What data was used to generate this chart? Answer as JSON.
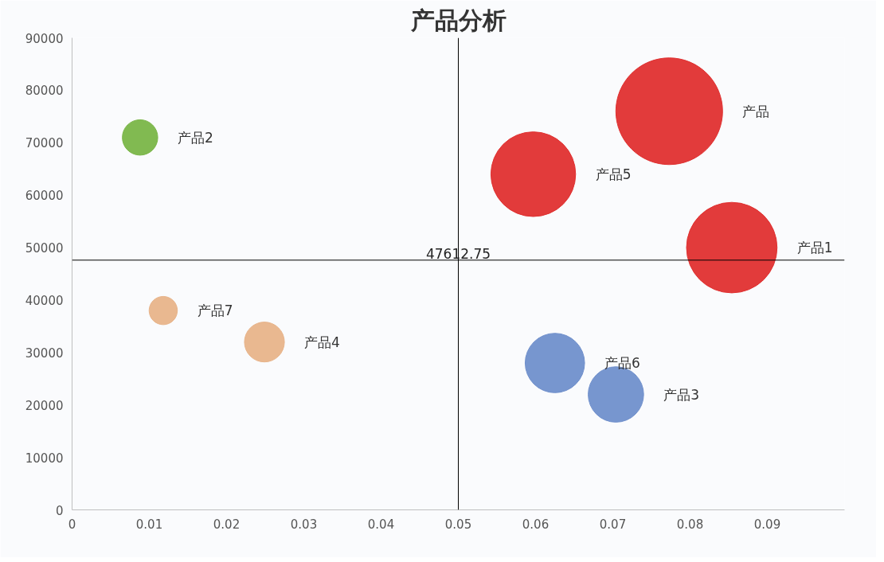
{
  "chart_data": {
    "type": "bubble",
    "title": "产品分析",
    "xlim": [
      0,
      0.1
    ],
    "xticks": [
      0,
      0.01,
      0.02,
      0.03,
      0.04,
      0.05,
      0.06,
      0.07,
      0.08,
      0.09
    ],
    "ylim": [
      0,
      90000
    ],
    "yticks": [
      0,
      10000,
      20000,
      30000,
      40000,
      50000,
      60000,
      70000,
      80000,
      90000
    ],
    "grid": false,
    "ref_lines": [
      {
        "axis": "x",
        "value": 0.05,
        "label": null,
        "color": "#000000"
      },
      {
        "axis": "y",
        "value": 47612.75,
        "label": "47612.75",
        "color": "#000000"
      }
    ],
    "series": [
      {
        "name": "产品1",
        "color": "#e03030",
        "x": [
          0.0854
        ],
        "values": [
          50000
        ],
        "sizes": [
          0.72
        ]
      },
      {
        "name": "产品2",
        "color": "#7ab648",
        "x": [
          0.0088
        ],
        "values": [
          71000
        ],
        "sizes": [
          0.11
        ]
      },
      {
        "name": "产品3",
        "color": "#7090cc",
        "x": [
          0.0704
        ],
        "values": [
          22000
        ],
        "sizes": [
          0.27
        ]
      },
      {
        "name": "产品4",
        "color": "#e8b48a",
        "x": [
          0.0249
        ],
        "values": [
          32000
        ],
        "sizes": [
          0.14
        ]
      },
      {
        "name": "产品5",
        "color": "#e03030",
        "x": [
          0.0597
        ],
        "values": [
          64000
        ],
        "sizes": [
          0.63
        ]
      },
      {
        "name": "产品6",
        "color": "#7090cc",
        "x": [
          0.0625
        ],
        "values": [
          28000
        ],
        "sizes": [
          0.31
        ]
      },
      {
        "name": "产品7",
        "color": "#e8b48a",
        "x": [
          0.0118
        ],
        "values": [
          38000
        ],
        "sizes": [
          0.07
        ]
      },
      {
        "name": "产品",
        "color": "#e03030",
        "x": [
          0.0773
        ],
        "values": [
          76000
        ],
        "sizes": [
          1
        ]
      }
    ]
  }
}
